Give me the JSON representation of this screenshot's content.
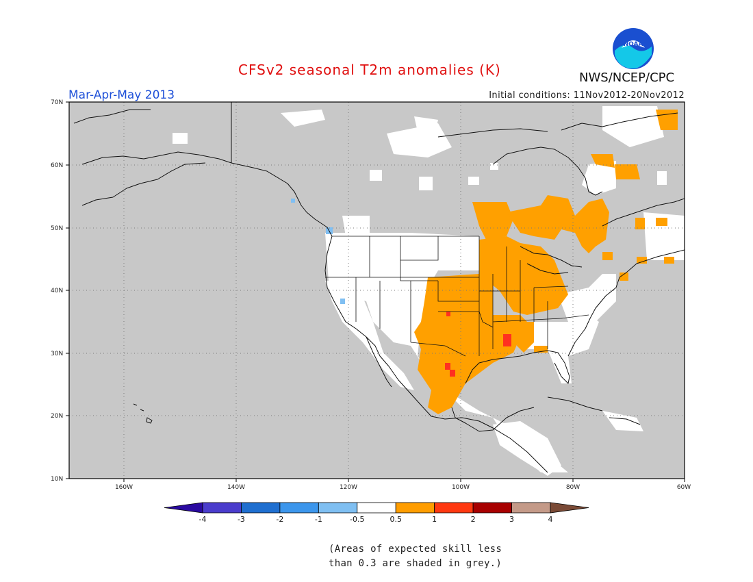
{
  "title": "CFSv2 seasonal T2m anomalies (K)",
  "period": "Mar-Apr-May 2013",
  "initial_conditions": "Initial conditions: 11Nov2012-20Nov2012",
  "org": "NWS/NCEP/CPC",
  "logo_text": "NOAA",
  "lat_labels": [
    "70N",
    "60N",
    "50N",
    "40N",
    "30N",
    "20N",
    "10N"
  ],
  "lon_labels": [
    "160W",
    "140W",
    "120W",
    "100W",
    "80W",
    "60W"
  ],
  "colorbar": {
    "labels": [
      "-4",
      "-3",
      "-2",
      "-1",
      "-0.5",
      "0.5",
      "1",
      "2",
      "3",
      "4"
    ],
    "colors": [
      "#2a0aa0",
      "#4a3ccc",
      "#1f6fd0",
      "#3c96ec",
      "#7fbff2",
      "#ffffff",
      "#ff9d00",
      "#ff3810",
      "#a80000",
      "#c49a88",
      "#7a4a36"
    ]
  },
  "colors": {
    "ocean_grey": "#c8c8c8",
    "no_signal": "#ffffff",
    "warm_0_5_1": "#ffa000",
    "warm_1_2": "#ff3020",
    "cool_0_5_1": "#80bff2"
  },
  "note_line1": "(Areas of expected skill less",
  "note_line2": "than 0.3 are shaded in grey.)"
}
